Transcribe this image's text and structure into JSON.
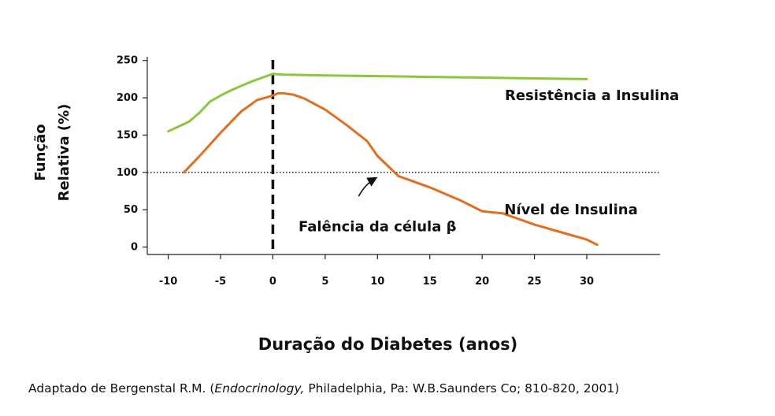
{
  "chart_data": {
    "type": "line",
    "xlabel": "Duração do Diabetes (anos)",
    "ylabel_line1": "Função",
    "ylabel_line2": "Relativa (%)",
    "xlim": [
      -12,
      37
    ],
    "ylim": [
      -10,
      255
    ],
    "x_ticks": [
      "-10",
      "-5",
      "0",
      "5",
      "10",
      "15",
      "20",
      "25",
      "30"
    ],
    "x_tick_values": [
      -10,
      -5,
      0,
      5,
      10,
      15,
      20,
      25,
      30
    ],
    "y_ticks": [
      "0",
      "50",
      "100",
      "150",
      "200",
      "250"
    ],
    "y_tick_values": [
      0,
      50,
      100,
      150,
      200,
      250
    ],
    "reference_line": {
      "y": 100,
      "style": "dotted"
    },
    "vertical_marker": {
      "x": 0,
      "style": "dashed"
    },
    "series": [
      {
        "name": "Resistência a Insulina",
        "color": "#8cc63f",
        "x": [
          -10,
          -8,
          -7,
          -6,
          -5,
          -4,
          -3,
          -2,
          -1,
          0,
          1,
          5,
          10,
          15,
          20,
          25,
          30
        ],
        "y": [
          155,
          168,
          180,
          195,
          203,
          210,
          216,
          222,
          227,
          232,
          231,
          230,
          229,
          228,
          227,
          226,
          225
        ]
      },
      {
        "name": "Nível de Insulina",
        "color": "#e07020",
        "x": [
          -8.5,
          -7,
          -5,
          -3,
          -1.5,
          0,
          0.5,
          1,
          2,
          3,
          5,
          7,
          9,
          10,
          12,
          15,
          18,
          20,
          22,
          25,
          28,
          30,
          31
        ],
        "y": [
          100,
          122,
          153,
          182,
          197,
          203,
          206,
          206,
          204,
          199,
          184,
          164,
          142,
          122,
          95,
          80,
          62,
          48,
          45,
          30,
          18,
          10,
          3
        ]
      }
    ],
    "annotations": [
      {
        "text": "Falência da célula β",
        "x": 10,
        "y": 100
      }
    ]
  },
  "caption": {
    "prefix": "Adaptado de Bergenstal R.M. (",
    "italic": "Endocrinology,",
    "suffix": " Philadelphia, Pa: W.B.Saunders Co; 810-820, 2001)"
  }
}
